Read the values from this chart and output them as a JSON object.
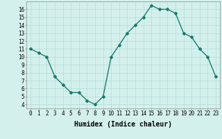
{
  "x": [
    0,
    1,
    2,
    3,
    4,
    5,
    6,
    7,
    8,
    9,
    10,
    11,
    12,
    13,
    14,
    15,
    16,
    17,
    18,
    19,
    20,
    21,
    22,
    23
  ],
  "y": [
    11,
    10.5,
    10,
    7.5,
    6.5,
    5.5,
    5.5,
    4.5,
    4,
    5,
    10,
    11.5,
    13,
    14,
    15,
    16.5,
    16,
    16,
    15.5,
    13,
    12.5,
    11,
    10,
    7.5
  ],
  "line_color": "#1a7a6e",
  "marker": "D",
  "marker_size": 2,
  "linewidth": 1.0,
  "xlabel": "Humidex (Indice chaleur)",
  "xlabel_fontsize": 7,
  "xlabel_fontname": "monospace",
  "ylabel": "",
  "title": "",
  "xlim": [
    -0.5,
    23.5
  ],
  "ylim": [
    3.5,
    17
  ],
  "yticks": [
    4,
    5,
    6,
    7,
    8,
    9,
    10,
    11,
    12,
    13,
    14,
    15,
    16
  ],
  "xticks": [
    0,
    1,
    2,
    3,
    4,
    5,
    6,
    7,
    8,
    9,
    10,
    11,
    12,
    13,
    14,
    15,
    16,
    17,
    18,
    19,
    20,
    21,
    22,
    23
  ],
  "xtick_labels": [
    "0",
    "1",
    "2",
    "3",
    "4",
    "5",
    "6",
    "7",
    "8",
    "9",
    "10",
    "11",
    "12",
    "13",
    "14",
    "15",
    "16",
    "17",
    "18",
    "19",
    "20",
    "21",
    "22",
    "23"
  ],
  "grid_color": "#b0ddd8",
  "background_color": "#d4f0ec",
  "tick_fontsize": 5.5,
  "tick_fontname": "monospace"
}
